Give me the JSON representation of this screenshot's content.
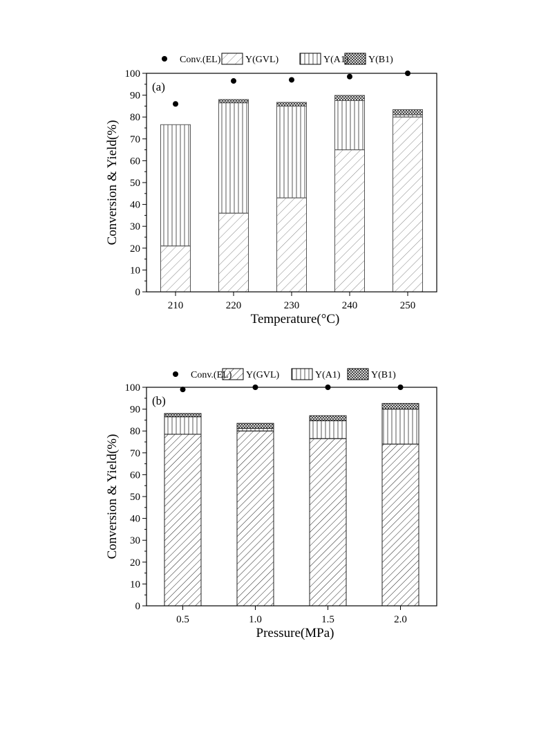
{
  "chart_data": [
    {
      "type": "bar",
      "stacked": true,
      "panel_label": "(a)",
      "categories": [
        "210",
        "220",
        "230",
        "240",
        "250"
      ],
      "xlabel": "Temperature(°C)",
      "ylabel": "Conversion & Yield(%)",
      "ylim": [
        0,
        100
      ],
      "yticks": [
        "0",
        "10",
        "20",
        "30",
        "40",
        "50",
        "60",
        "70",
        "80",
        "90",
        "100"
      ],
      "grid": false,
      "legend_position": "top",
      "legend": [
        "Conv.(EL)",
        "Y(GVL)",
        "Y(A1)",
        "Y(B1)"
      ],
      "series": [
        {
          "name": "Y(GVL)",
          "kind": "bar",
          "pattern": "sparse-diagonal",
          "values": [
            21,
            36,
            43,
            65,
            80
          ]
        },
        {
          "name": "Y(A1)",
          "kind": "bar",
          "pattern": "vertical",
          "values": [
            55.5,
            50.5,
            42,
            22.5,
            1
          ]
        },
        {
          "name": "Y(B1)",
          "kind": "bar",
          "pattern": "crosshatch",
          "values": [
            0,
            1.5,
            1.7,
            2.4,
            2.4
          ]
        },
        {
          "name": "Conv.(EL)",
          "kind": "point",
          "values": [
            86,
            96.5,
            97,
            98.5,
            100
          ]
        }
      ],
      "style": {
        "edge_color": "#555555",
        "sparse_hatch": true
      }
    },
    {
      "type": "bar",
      "stacked": true,
      "panel_label": "(b)",
      "categories": [
        "0.5",
        "1.0",
        "1.5",
        "2.0"
      ],
      "xlabel": "Pressure(MPa)",
      "ylabel": "Conversion & Yield(%)",
      "ylim": [
        0,
        100
      ],
      "yticks": [
        "0",
        "10",
        "20",
        "30",
        "40",
        "50",
        "60",
        "70",
        "80",
        "90",
        "100"
      ],
      "grid": false,
      "legend_position": "top",
      "legend": [
        "Conv.(EL)",
        "Y(GVL)",
        "Y(A1)",
        "Y(B1)"
      ],
      "series": [
        {
          "name": "Y(GVL)",
          "kind": "bar",
          "pattern": "dense-diagonal",
          "values": [
            78.5,
            80,
            76.5,
            74
          ]
        },
        {
          "name": "Y(A1)",
          "kind": "bar",
          "pattern": "vertical",
          "values": [
            8,
            1.2,
            8.2,
            16
          ]
        },
        {
          "name": "Y(B1)",
          "kind": "bar",
          "pattern": "crosshatch",
          "values": [
            1.5,
            2.3,
            2.3,
            2.6
          ]
        },
        {
          "name": "Conv.(EL)",
          "kind": "point",
          "values": [
            99,
            100,
            100,
            100
          ]
        }
      ],
      "style": {
        "edge_color": "#222222",
        "sparse_hatch": false
      }
    }
  ]
}
